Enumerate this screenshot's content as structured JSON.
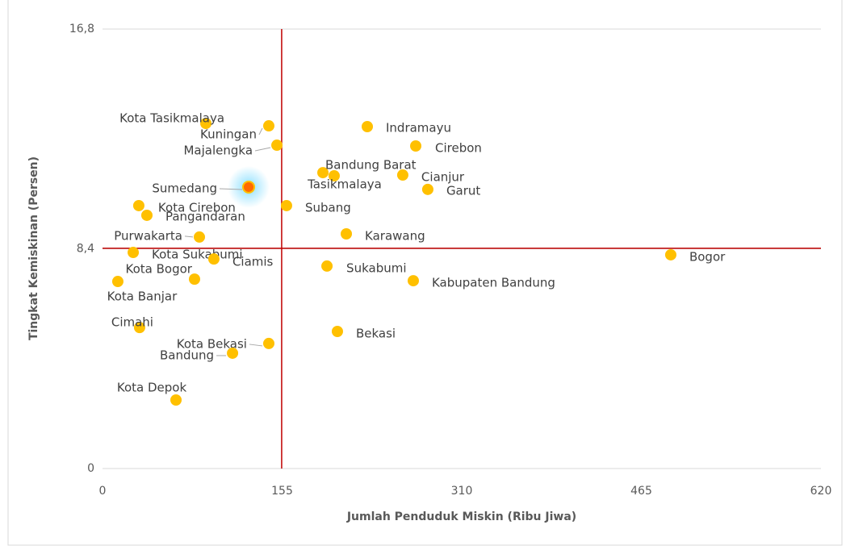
{
  "chart_data": {
    "type": "scatter",
    "x_label": "Jumlah Penduduk Miskin (Ribu Jiwa)",
    "y_label": "Tingkat Kemiskinan (Persen)",
    "xlim": [
      0,
      620
    ],
    "xticks": [
      0,
      155,
      310,
      465,
      620
    ],
    "ylim": [
      0,
      16.8
    ],
    "yticks": [
      0,
      {
        "value": 8.4,
        "label": "8,4"
      },
      {
        "value": 16.8,
        "label": "16,8"
      }
    ],
    "grid": true,
    "reference_lines": {
      "x": 154.6,
      "y": 8.42,
      "color": "#c00000"
    },
    "highlight": "Sumedang",
    "series": [
      {
        "color": "#ffc000",
        "labels": [
          "Kota Tasikmalaya",
          "Kuningan",
          "Majalengka",
          "Indramayu",
          "Cirebon",
          "Bandung Barat",
          "Tasikmalaya",
          "Cianjur",
          "Garut",
          "Sumedang",
          "Kota Cirebon",
          "Pangandaran",
          "Subang",
          "Purwakarta",
          "Karawang",
          "Kota Sukabumi",
          "Ciamis",
          "Bogor",
          "Sukabumi",
          "Kota Bogor",
          "Kota Banjar",
          "Kabupaten Bandung",
          "Cimahi",
          "Bekasi",
          "Kota Bekasi",
          "Bandung",
          "Kota Depok"
        ],
        "x": [
          89.2,
          143.5,
          150.5,
          228.5,
          270.3,
          190.2,
          199.9,
          259.1,
          280.7,
          126.1,
          31.3,
          38.3,
          158.8,
          83.6,
          210.4,
          26.5,
          96.1,
          490.4,
          193.7,
          79.4,
          13.2,
          268.2,
          32.0,
          202.7,
          143.5,
          112.2,
          63.4
        ],
        "values": [
          13.19,
          13.1,
          12.36,
          13.07,
          12.33,
          11.31,
          11.19,
          11.22,
          10.67,
          10.76,
          10.05,
          9.68,
          10.05,
          8.85,
          8.97,
          8.26,
          8.01,
          8.17,
          7.74,
          7.24,
          7.15,
          7.18,
          5.39,
          5.24,
          4.78,
          4.41,
          2.62
        ]
      }
    ]
  }
}
